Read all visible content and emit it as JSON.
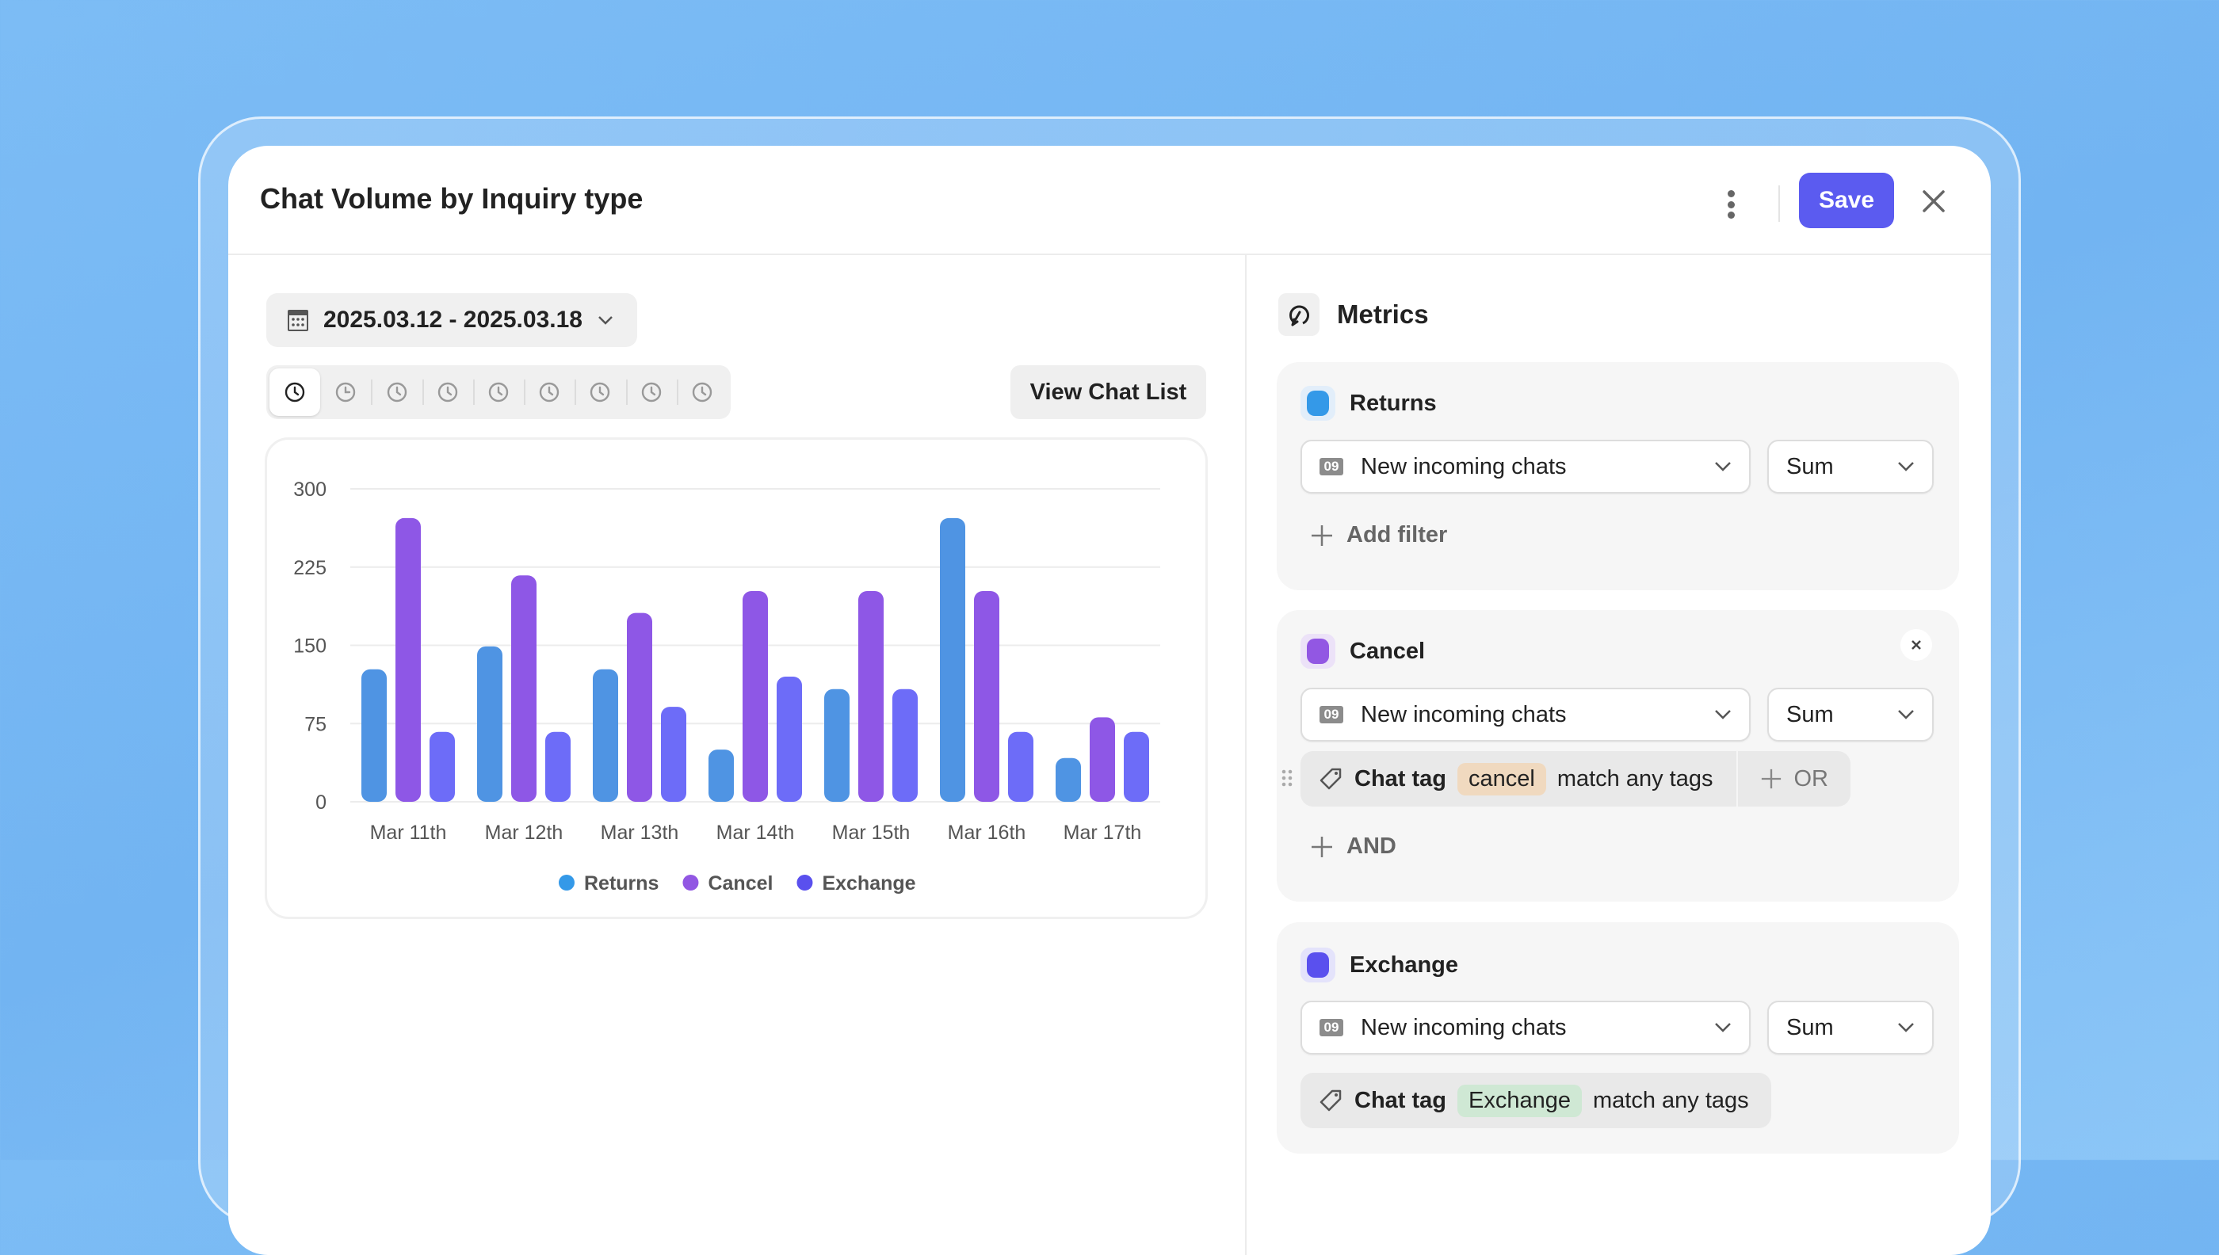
{
  "header": {
    "title": "Chat Volume by Inquiry type",
    "save_label": "Save"
  },
  "toolbar": {
    "date_range": "2025.03.12 - 2025.03.18",
    "view_chat_list": "View Chat List",
    "time_buttons": 9,
    "active_time_button": 0
  },
  "chart_data": {
    "type": "bar",
    "categories": [
      "Mar 11th",
      "Mar 12th",
      "Mar 13th",
      "Mar 14th",
      "Mar 15th",
      "Mar 16th",
      "Mar 17th"
    ],
    "series": [
      {
        "name": "Returns",
        "color": "#4f94e3",
        "legend_color": "#3499e8",
        "values": [
          127,
          149,
          127,
          50,
          108,
          272,
          42
        ]
      },
      {
        "name": "Cancel",
        "color": "#8e57e6",
        "legend_color": "#9257e3",
        "values": [
          272,
          217,
          181,
          202,
          202,
          202,
          81
        ]
      },
      {
        "name": "Exchange",
        "color": "#6d6cf8",
        "legend_color": "#5a50ee",
        "values": [
          67,
          67,
          91,
          120,
          108,
          67,
          67
        ]
      }
    ],
    "yticks": [
      "0",
      "75",
      "150",
      "225",
      "300"
    ],
    "ylim": [
      0,
      300
    ],
    "grid": true,
    "legend": "bottom"
  },
  "metrics": {
    "title": "Metrics",
    "items": [
      {
        "name": "Returns",
        "color": "#3499e8",
        "metric": "New incoming chats",
        "badge": "09",
        "agg": "Sum",
        "add_label": "Add filter"
      },
      {
        "name": "Cancel",
        "color": "#9257e3",
        "metric": "New incoming chats",
        "badge": "09",
        "agg": "Sum",
        "filter_label": "Chat tag",
        "tag": "cancel",
        "match": "match any tags",
        "or_label": "OR",
        "add_label": "AND"
      },
      {
        "name": "Exchange",
        "color": "#5a50ee",
        "metric": "New incoming chats",
        "badge": "09",
        "agg": "Sum",
        "filter_label": "Chat tag",
        "tag": "Exchange",
        "match": "match any tags"
      }
    ]
  }
}
